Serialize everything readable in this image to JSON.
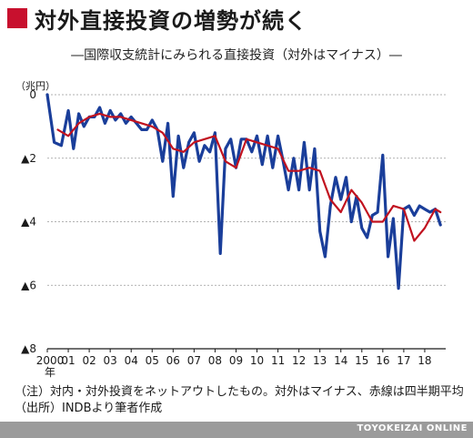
{
  "title": "対外直接投資の増勢が続く",
  "subtitle": "―国際収支統計にみられる直接投資（対外はマイナス）―",
  "brand": "TOYOKEIZAI ONLINE",
  "notes": [
    "（注）対内・対外投資をネットアウトしたもの。対外はマイナス、赤線は四半期平均",
    "（出所）INDBより筆者作成"
  ],
  "colors": {
    "monthly": "#1a3e9a",
    "quarterly": "#c1121f",
    "title_mark": "#c8102e",
    "footer": "#9b9b9b"
  },
  "chart_data": {
    "type": "line",
    "unit_label": "（兆円）",
    "y_ticks": [
      "0",
      "▲2",
      "▲4",
      "▲6",
      "▲8"
    ],
    "y_tick_values": [
      0,
      -2,
      -4,
      -6,
      -8
    ],
    "ylim": [
      -8,
      0
    ],
    "xlim": [
      2000,
      2019
    ],
    "x_ticks": [
      "2000",
      "01",
      "02",
      "03",
      "04",
      "05",
      "06",
      "07",
      "08",
      "09",
      "10",
      "11",
      "12",
      "13",
      "14",
      "15",
      "16",
      "17",
      "18"
    ],
    "x_tick_values": [
      2000,
      2001,
      2002,
      2003,
      2004,
      2005,
      2006,
      2007,
      2008,
      2009,
      2010,
      2011,
      2012,
      2013,
      2014,
      2015,
      2016,
      2017,
      2018
    ],
    "x_sub_label": "年",
    "series": [
      {
        "key": "monthly",
        "x": [
          2000.0,
          2000.33,
          2000.67,
          2001.0,
          2001.25,
          2001.5,
          2001.75,
          2002.0,
          2002.25,
          2002.5,
          2002.75,
          2003.0,
          2003.25,
          2003.5,
          2003.75,
          2004.0,
          2004.25,
          2004.5,
          2004.75,
          2005.0,
          2005.25,
          2005.5,
          2005.75,
          2006.0,
          2006.25,
          2006.5,
          2006.75,
          2007.0,
          2007.25,
          2007.5,
          2007.75,
          2008.0,
          2008.25,
          2008.5,
          2008.75,
          2009.0,
          2009.25,
          2009.5,
          2009.75,
          2010.0,
          2010.25,
          2010.5,
          2010.75,
          2011.0,
          2011.25,
          2011.5,
          2011.75,
          2012.0,
          2012.25,
          2012.5,
          2012.75,
          2013.0,
          2013.25,
          2013.5,
          2013.75,
          2014.0,
          2014.25,
          2014.5,
          2014.75,
          2015.0,
          2015.25,
          2015.5,
          2015.75,
          2016.0,
          2016.25,
          2016.5,
          2016.75,
          2017.0,
          2017.25,
          2017.5,
          2017.75,
          2018.0,
          2018.25,
          2018.5,
          2018.75
        ],
        "y": [
          0,
          -1.5,
          -1.6,
          -0.5,
          -1.7,
          -0.6,
          -1.0,
          -0.7,
          -0.7,
          -0.4,
          -0.9,
          -0.5,
          -0.8,
          -0.6,
          -0.9,
          -0.7,
          -0.9,
          -1.1,
          -1.1,
          -0.8,
          -1.1,
          -2.1,
          -0.9,
          -3.2,
          -1.3,
          -2.3,
          -1.5,
          -1.2,
          -2.1,
          -1.6,
          -1.8,
          -1.2,
          -5.0,
          -1.7,
          -1.4,
          -2.3,
          -1.4,
          -1.4,
          -1.8,
          -1.3,
          -2.2,
          -1.3,
          -2.3,
          -1.3,
          -2.1,
          -3.0,
          -2.0,
          -3.0,
          -1.5,
          -3.0,
          -1.7,
          -4.3,
          -5.1,
          -3.5,
          -2.6,
          -3.3,
          -2.6,
          -4.0,
          -3.2,
          -4.2,
          -4.5,
          -3.8,
          -3.7,
          -1.9,
          -5.1,
          -3.9,
          -6.1,
          -3.6,
          -3.5,
          -3.8,
          -3.5,
          -3.6,
          -3.7,
          -3.6,
          -4.1
        ]
      },
      {
        "key": "quarterly",
        "x": [
          2000.5,
          2001.0,
          2001.5,
          2002.0,
          2002.5,
          2003.0,
          2003.5,
          2004.0,
          2004.5,
          2005.0,
          2005.5,
          2006.0,
          2006.5,
          2007.0,
          2007.5,
          2008.0,
          2008.5,
          2009.0,
          2009.5,
          2010.0,
          2010.5,
          2011.0,
          2011.5,
          2012.0,
          2012.5,
          2013.0,
          2013.5,
          2014.0,
          2014.5,
          2015.0,
          2015.5,
          2016.0,
          2016.5,
          2017.0,
          2017.5,
          2018.0,
          2018.5,
          2018.75
        ],
        "y": [
          -1.1,
          -1.3,
          -0.9,
          -0.7,
          -0.6,
          -0.7,
          -0.7,
          -0.8,
          -0.9,
          -1.0,
          -1.2,
          -1.7,
          -1.8,
          -1.5,
          -1.4,
          -1.3,
          -2.1,
          -2.3,
          -1.4,
          -1.5,
          -1.6,
          -1.7,
          -2.4,
          -2.4,
          -2.3,
          -2.4,
          -3.3,
          -3.7,
          -3.0,
          -3.4,
          -4.0,
          -4.0,
          -3.5,
          -3.6,
          -4.6,
          -4.2,
          -3.6,
          -3.7
        ]
      }
    ]
  }
}
